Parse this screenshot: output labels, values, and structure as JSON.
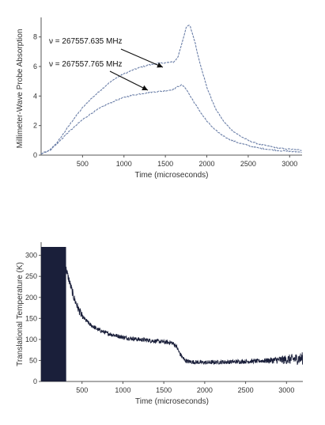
{
  "chart_data": [
    {
      "type": "line",
      "xlabel": "Time (microseconds)",
      "ylabel": "Millimeter-Wave Probe Absorption",
      "xlim": [
        0,
        3150
      ],
      "ylim": [
        0,
        9
      ],
      "xticks": [
        500,
        1000,
        1500,
        2000,
        2500,
        3000
      ],
      "yticks": [
        0,
        2,
        4,
        6,
        8
      ],
      "series": [
        {
          "name": "ν = 267557.635 MHz",
          "color": "#6b7fa8",
          "x": [
            0,
            100,
            200,
            300,
            400,
            500,
            600,
            700,
            800,
            900,
            1000,
            1100,
            1200,
            1300,
            1400,
            1500,
            1600,
            1650,
            1700,
            1750,
            1780,
            1800,
            1850,
            1900,
            2000,
            2100,
            2200,
            2300,
            2400,
            2500,
            2600,
            2700,
            2800,
            2900,
            3000,
            3100,
            3150
          ],
          "y": [
            0.1,
            0.3,
            0.9,
            1.7,
            2.5,
            3.2,
            3.8,
            4.3,
            4.8,
            5.2,
            5.5,
            5.75,
            5.95,
            6.1,
            6.2,
            6.25,
            6.3,
            6.6,
            7.6,
            8.6,
            8.8,
            8.7,
            7.8,
            6.6,
            4.6,
            3.2,
            2.3,
            1.7,
            1.3,
            1.0,
            0.8,
            0.65,
            0.55,
            0.45,
            0.4,
            0.35,
            0.33
          ]
        },
        {
          "name": "ν = 267557.765 MHz",
          "color": "#6b7fa8",
          "x": [
            0,
            100,
            200,
            300,
            400,
            500,
            600,
            700,
            800,
            900,
            1000,
            1100,
            1200,
            1300,
            1400,
            1500,
            1600,
            1650,
            1700,
            1750,
            1800,
            1900,
            2000,
            2100,
            2200,
            2300,
            2400,
            2500,
            2600,
            2700,
            2800,
            2900,
            3000,
            3100,
            3150
          ],
          "y": [
            0.1,
            0.3,
            0.8,
            1.4,
            1.9,
            2.4,
            2.8,
            3.15,
            3.45,
            3.7,
            3.9,
            4.05,
            4.15,
            4.25,
            4.3,
            4.35,
            4.45,
            4.65,
            4.75,
            4.5,
            4.0,
            3.1,
            2.3,
            1.7,
            1.3,
            1.0,
            0.8,
            0.65,
            0.5,
            0.42,
            0.35,
            0.3,
            0.25,
            0.22,
            0.2
          ]
        }
      ],
      "annotations": [
        {
          "text": "ν = 267557.635 MHz",
          "series": 0,
          "at_x": 1600
        },
        {
          "text": "ν = 267557.765 MHz",
          "series": 1,
          "at_x": 1300
        }
      ]
    },
    {
      "type": "line",
      "xlabel": "Time (microseconds)",
      "ylabel": "Translational Temperature (K)",
      "xlim": [
        0,
        3200
      ],
      "ylim": [
        0,
        320
      ],
      "xticks": [
        500,
        1000,
        1500,
        2000,
        2500,
        3000
      ],
      "yticks": [
        0,
        50,
        100,
        150,
        200,
        250,
        300
      ],
      "series": [
        {
          "color": "#1a1f3a",
          "x": [
            0,
            300,
            350,
            400,
            450,
            500,
            600,
            700,
            800,
            900,
            1000,
            1100,
            1200,
            1300,
            1400,
            1500,
            1600,
            1650,
            1700,
            1750,
            1800,
            1900,
            2000,
            2200,
            2400,
            2600,
            2800,
            3000,
            3200
          ],
          "y": [
            320,
            270,
            235,
            200,
            175,
            155,
            135,
            123,
            115,
            110,
            105,
            102,
            100,
            98,
            96,
            94,
            92,
            85,
            65,
            52,
            47,
            46,
            45,
            46,
            47,
            48,
            50,
            52,
            55
          ]
        }
      ]
    }
  ],
  "colors": {
    "axis": "#555555",
    "series": "#6b7fa8",
    "trace": "#1a1f3a"
  }
}
